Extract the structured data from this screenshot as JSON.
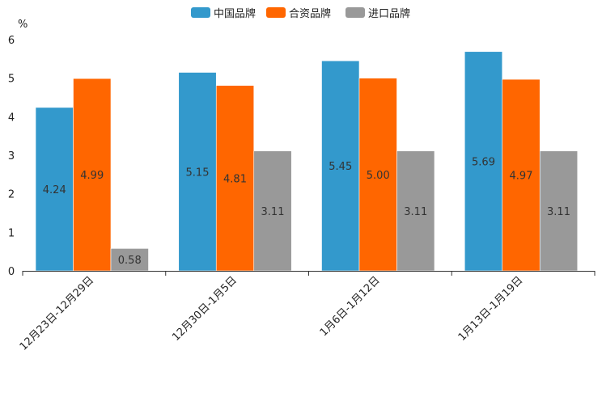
{
  "chart_data": {
    "type": "bar",
    "title": "",
    "xlabel": "",
    "ylabel": "%",
    "ylim": [
      0,
      6
    ],
    "yticks": [
      0,
      1,
      2,
      3,
      4,
      5,
      6
    ],
    "grid": false,
    "legend_position": "top-center",
    "categories": [
      "12月23日-12月29日",
      "12月30日-1月5日",
      "1月6日-1月12日",
      "1月13日-1月19日"
    ],
    "series": [
      {
        "name": "中国品牌",
        "color": "#3399cc",
        "values": [
          4.24,
          5.15,
          5.45,
          5.69
        ]
      },
      {
        "name": "合资品牌",
        "color": "#ff6600",
        "values": [
          4.99,
          4.81,
          5.0,
          4.97
        ]
      },
      {
        "name": "进口品牌",
        "color": "#999999",
        "values": [
          0.58,
          3.11,
          3.11,
          3.11
        ]
      }
    ],
    "data_labels": [
      [
        "4.24",
        "5.15",
        "5.45",
        "5.69"
      ],
      [
        "4.99",
        "4.81",
        "5.00",
        "4.97"
      ],
      [
        "0.58",
        "3.11",
        "3.11",
        "3.11"
      ]
    ]
  }
}
